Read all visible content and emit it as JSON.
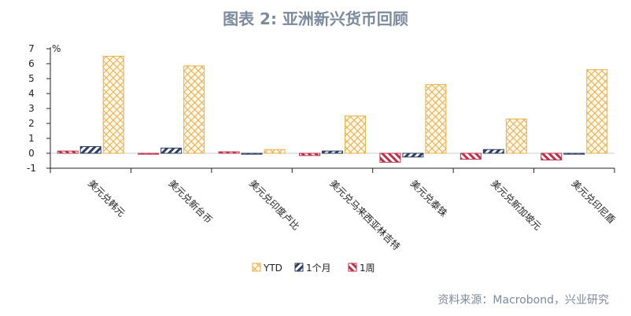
{
  "chart_data": {
    "type": "bar",
    "title": "图表 2: 亚洲新兴货币回顾",
    "ylabel": "%",
    "ylim": [
      -1,
      7
    ],
    "yticks": [
      -1,
      0,
      1,
      2,
      3,
      4,
      5,
      6,
      7
    ],
    "categories": [
      "美元兑韩元",
      "美元兑新台币",
      "美元兑印度卢比",
      "美元兑马来西亚林吉特",
      "美元兑泰铢",
      "美元兑新加坡元",
      "美元兑印尼盾"
    ],
    "series": [
      {
        "name": "1周",
        "color": "#c0304a",
        "values": [
          0.15,
          -0.05,
          0.1,
          -0.15,
          -0.6,
          -0.4,
          -0.45
        ]
      },
      {
        "name": "1个月",
        "color": "#2e3d63",
        "values": [
          0.45,
          0.35,
          -0.05,
          0.15,
          -0.25,
          0.25,
          -0.05
        ]
      },
      {
        "name": "YTD",
        "color": "#eab04a",
        "values": [
          6.5,
          5.85,
          0.25,
          2.5,
          4.6,
          2.3,
          5.6
        ]
      }
    ],
    "legend_order": [
      "YTD",
      "1个月",
      "1周"
    ],
    "legend_position": "bottom",
    "grid": false
  },
  "source": "资料来源：Macrobond，兴业研究"
}
